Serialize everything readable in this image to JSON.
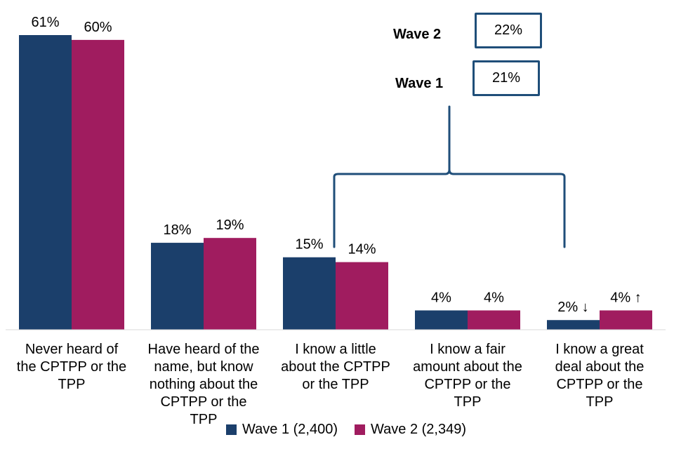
{
  "chart_data": {
    "type": "bar",
    "categories": [
      "Never heard of the CPTPP or the TPP",
      "Have heard of the name, but know nothing about the CPTPP or the TPP",
      "I know a little about the CPTPP or the TPP",
      "I know a fair amount about the CPTPP or the TPP",
      "I know a great deal about the CPTPP or the TPP"
    ],
    "category_lines": [
      [
        "Never heard of",
        "the CPTPP or the",
        "TPP"
      ],
      [
        "Have heard of the",
        "name, but know",
        "nothing about the",
        "CPTPP or the",
        "TPP"
      ],
      [
        "I know a little",
        "about the CPTPP",
        "or the TPP"
      ],
      [
        "I know a fair",
        "amount about the",
        "CPTPP or the",
        "TPP"
      ],
      [
        "I know a great",
        "deal about the",
        "CPTPP or the",
        "TPP"
      ]
    ],
    "series": [
      {
        "name": "Wave 1 (2,400)",
        "color": "#1b3f6b",
        "values": [
          61,
          18,
          15,
          4,
          2
        ],
        "labels": [
          "61%",
          "18%",
          "15%",
          "4%",
          "2% ↓"
        ]
      },
      {
        "name": "Wave 2 (2,349)",
        "color": "#a01c5f",
        "values": [
          60,
          19,
          14,
          4,
          4
        ],
        "labels": [
          "60%",
          "19%",
          "14%",
          "4%",
          "4% ↑"
        ]
      }
    ],
    "ylim": [
      0,
      61
    ],
    "grid": false,
    "legend": "bottom",
    "annotation": {
      "bracket_color": "#1f4e79",
      "spans_categories": [
        2,
        4
      ],
      "wave2_label": "Wave 2",
      "wave2_value": "22%",
      "wave1_label": "Wave 1",
      "wave1_value": "21%"
    }
  }
}
